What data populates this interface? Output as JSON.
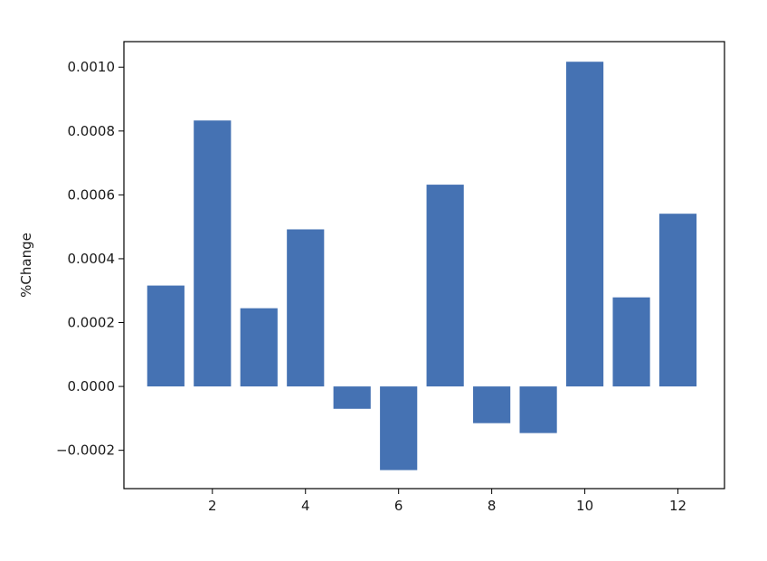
{
  "chart_data": {
    "type": "bar",
    "title": "",
    "xlabel": "",
    "ylabel": "%Change",
    "x": [
      1,
      2,
      3,
      4,
      5,
      6,
      7,
      8,
      9,
      10,
      11,
      12
    ],
    "values": [
      0.000316,
      0.000833,
      0.000245,
      0.000492,
      -7e-05,
      -0.000262,
      0.000632,
      -0.000115,
      -0.000146,
      0.001017,
      0.000279,
      0.000541
    ],
    "xlim": [
      0.1,
      13.0
    ],
    "ylim": [
      -0.00032,
      0.00108
    ],
    "xticks": [
      2,
      4,
      6,
      8,
      10,
      12
    ],
    "xtick_labels": [
      "2",
      "4",
      "6",
      "8",
      "10",
      "12"
    ],
    "yticks": [
      -0.0002,
      0.0,
      0.0002,
      0.0004,
      0.0006,
      0.0008,
      0.001
    ],
    "ytick_labels": [
      "−0.0002",
      "0.0000",
      "0.0002",
      "0.0004",
      "0.0006",
      "0.0008",
      "0.0010"
    ],
    "bar_color": "#4572b3",
    "grid": false,
    "legend": "none"
  }
}
